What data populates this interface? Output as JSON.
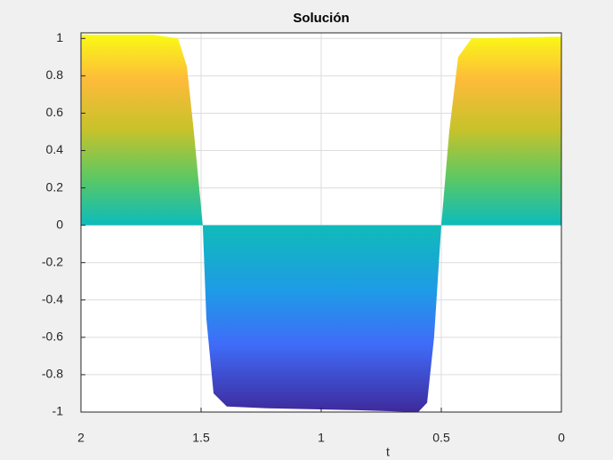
{
  "chart_data": {
    "type": "area",
    "title": "Solución",
    "x_label": "t",
    "x": [
      2,
      1.7,
      1.596,
      1.559,
      1.53,
      1.493,
      1.478,
      1.448,
      1.393,
      1.226,
      0.856,
      0.596,
      0.559,
      0.53,
      0.5,
      0.467,
      0.43,
      0.374,
      0
    ],
    "values": [
      1.02,
      1.02,
      1.0,
      0.85,
      0.5,
      0.0,
      -0.5,
      -0.9,
      -0.97,
      -0.98,
      -0.99,
      -1.0,
      -0.95,
      -0.6,
      0.0,
      0.5,
      0.9,
      1.0,
      1.01
    ],
    "xlim": [
      2,
      0
    ],
    "xticks": [
      2,
      1.5,
      1,
      0.5,
      0
    ],
    "ylim": [
      -1,
      1.03
    ],
    "yticks": [
      -1,
      -0.8,
      -0.6,
      -0.4,
      -0.2,
      0,
      0.2,
      0.4,
      0.6,
      0.8,
      1
    ],
    "grid": true
  }
}
